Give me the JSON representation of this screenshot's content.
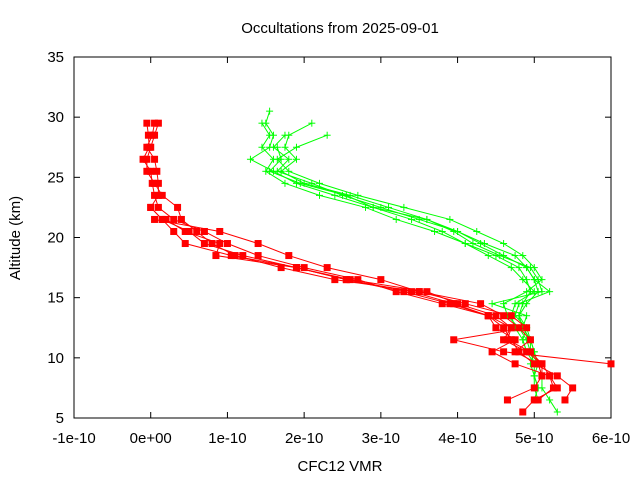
{
  "chart_data": {
    "type": "line",
    "title": "Occultations from 2025-09-01",
    "xlabel": "CFC12 VMR",
    "ylabel": "Altitude (km)",
    "xlim": [
      -1e-10,
      6e-10
    ],
    "ylim": [
      5,
      35
    ],
    "x_ticks": [
      -1e-10,
      0,
      1e-10,
      2e-10,
      3e-10,
      4e-10,
      5e-10,
      6e-10
    ],
    "x_tick_labels": [
      "-1e-10",
      "0e+00",
      "1e-10",
      "2e-10",
      "3e-10",
      "4e-10",
      "5e-10",
      "6e-10"
    ],
    "y_ticks": [
      5,
      10,
      15,
      20,
      25,
      30,
      35
    ],
    "y_tick_labels": [
      "5",
      "10",
      "15",
      "20",
      "25",
      "30",
      "35"
    ],
    "grid": false,
    "legend": "none",
    "colors": {
      "red_series": "#ff0000",
      "green_series": "#00ff00"
    },
    "series_red": [
      {
        "y": [
          29.5,
          28.5,
          27.5,
          26.5,
          25.5,
          24.5,
          23.5,
          22.5,
          21.5,
          20.5,
          19.5,
          18.5,
          17.5,
          16.5,
          15.5,
          14.5,
          13.5,
          12.5,
          11.5,
          10.5,
          9.5,
          8.5,
          7.5,
          6.5
        ],
        "x": [
          -5e-12,
          -3e-12,
          -2e-12,
          -1e-11,
          0.0,
          2e-12,
          5e-12,
          1e-11,
          3e-11,
          7e-11,
          1e-10,
          1.4e-10,
          2e-10,
          2.7e-10,
          3.2e-10,
          3.8e-10,
          4.4e-10,
          4.6e-10,
          4.7e-10,
          4.8e-10,
          5e-10,
          5.3e-10,
          5.5e-10,
          5.4e-10
        ]
      },
      {
        "y": [
          29.5,
          28.5,
          27.5,
          26.5,
          25.5,
          24.5,
          23.5,
          22.5,
          21.5,
          20.5,
          19.5,
          18.5,
          17.5,
          16.5,
          15.5,
          14.5,
          13.5,
          12.5,
          11.5,
          10.5,
          9.5,
          8.5,
          7.5,
          6.5
        ],
        "x": [
          5e-12,
          2e-12,
          -5e-12,
          5e-12,
          8e-12,
          1e-11,
          1e-11,
          0.0,
          1.5e-11,
          5e-11,
          7e-11,
          1.2e-10,
          1.9e-10,
          2.6e-10,
          3.6e-10,
          4e-10,
          4.5e-10,
          4.7e-10,
          4.6e-10,
          4.9e-10,
          5.1e-10,
          5.2e-10,
          5.25e-10,
          5.05e-10
        ]
      },
      {
        "y": [
          29.5,
          28.5,
          27.5,
          26.5,
          25.5,
          24.5,
          23.5,
          22.5,
          21.5,
          20.5,
          19.5,
          18.5,
          17.5,
          16.5,
          15.5,
          14.5,
          13.5,
          12.5,
          11.5,
          10.5,
          9.5,
          8.5,
          7.5,
          6.5
        ],
        "x": [
          1e-11,
          5e-12,
          0.0,
          -5e-12,
          -5e-12,
          5e-12,
          1.5e-11,
          3.5e-11,
          4e-11,
          6e-11,
          8e-11,
          1.1e-10,
          1.7e-10,
          2.4e-10,
          3.5e-10,
          4.3e-10,
          4.6e-10,
          4.8e-10,
          4.95e-10,
          4.75e-10,
          5.05e-10,
          5.1e-10,
          5e-10,
          4.65e-10
        ]
      },
      {
        "y": [
          21.5,
          20.5,
          19.5,
          18.5,
          17.5,
          16.5,
          15.5,
          14.5,
          13.5,
          12.5,
          11.5,
          10.5,
          9.5
        ],
        "x": [
          5e-12,
          9e-11,
          1.4e-10,
          1.8e-10,
          2.3e-10,
          3e-10,
          3.5e-10,
          4.1e-10,
          4.7e-10,
          4.9e-10,
          3.95e-10,
          4.6e-10,
          6e-10
        ]
      },
      {
        "y": [
          22.5,
          21.5,
          20.5,
          19.5,
          18.5,
          17.5,
          16.5,
          15.5,
          14.5,
          13.5,
          12.5,
          11.5,
          10.5,
          9.5,
          8.5,
          7.5,
          6.5,
          5.5
        ],
        "x": [
          0.0,
          1.5e-11,
          3e-11,
          4.5e-11,
          1.05e-10,
          1.9e-10,
          2.55e-10,
          3.3e-10,
          3.9e-10,
          4.4e-10,
          4.5e-10,
          4.75e-10,
          4.45e-10,
          4.75e-10,
          5.2e-10,
          5.3e-10,
          5e-10,
          4.85e-10
        ]
      },
      {
        "y": [
          21.5,
          20.5,
          19.5,
          18.5,
          17.5,
          16.5,
          15.5,
          14.5,
          13.5,
          12.5,
          11.5,
          10.5,
          9.5,
          8.5
        ],
        "x": [
          2e-11,
          4.5e-11,
          9e-11,
          8.5e-11,
          1.9e-10,
          2.55e-10,
          3.4e-10,
          3.95e-10,
          4.4e-10,
          4.7e-10,
          4.65e-10,
          4.95e-10,
          5.1e-10,
          5.1e-10
        ]
      }
    ],
    "series_green": [
      {
        "y": [
          30.5,
          29.5,
          28.5,
          27.5,
          26.5,
          25.5,
          24.5,
          23.5,
          22.5,
          21.5,
          20.5,
          19.5,
          18.5,
          17.5,
          16.5,
          15.5,
          14.5,
          13.5,
          12.5,
          11.5,
          10.5,
          9.5,
          8.5,
          7.5,
          6.5,
          5.5
        ],
        "x": [
          1.55e-10,
          1.5e-10,
          1.6e-10,
          1.55e-10,
          1.3e-10,
          1.6e-10,
          1.9e-10,
          2.4e-10,
          2.9e-10,
          3.4e-10,
          3.8e-10,
          4.1e-10,
          4.5e-10,
          4.8e-10,
          4.9e-10,
          4.95e-10,
          4.85e-10,
          4.8e-10,
          4.9e-10,
          4.95e-10,
          5e-10,
          5.05e-10,
          5.1e-10,
          5.1e-10,
          5.2e-10,
          5.3e-10
        ]
      },
      {
        "y": [
          29.5,
          28.5,
          27.5,
          26.5,
          25.5,
          24.5,
          23.5,
          22.5,
          21.5,
          20.5,
          19.5,
          18.5,
          17.5,
          16.5,
          15.5,
          14.5,
          13.5,
          12.5,
          11.5,
          10.5,
          9.5,
          8.5,
          7.5,
          6.5
        ],
        "x": [
          2.1e-10,
          1.8e-10,
          1.75e-10,
          1.9e-10,
          1.7e-10,
          2e-10,
          2.6e-10,
          3.1e-10,
          3.6e-10,
          4e-10,
          4.3e-10,
          4.6e-10,
          4.9e-10,
          5e-10,
          5.05e-10,
          4.9e-10,
          4.8e-10,
          4.85e-10,
          4.95e-10,
          5e-10,
          4.95e-10,
          5e-10,
          5.05e-10,
          5e-10
        ]
      },
      {
        "y": [
          29.5,
          28.5,
          27.5,
          26.5,
          25.5,
          24.5,
          23.5,
          22.5,
          21.5,
          20.5,
          19.5,
          18.5,
          17.5,
          16.5,
          15.5,
          14.5,
          13.5,
          12.5,
          11.5,
          10.5,
          9.5,
          8.5,
          7.5
        ],
        "x": [
          1.45e-10,
          1.55e-10,
          1.45e-10,
          1.6e-10,
          1.5e-10,
          1.75e-10,
          2.2e-10,
          2.8e-10,
          3.2e-10,
          3.7e-10,
          4.1e-10,
          4.4e-10,
          4.7e-10,
          4.85e-10,
          5e-10,
          4.75e-10,
          4.7e-10,
          4.75e-10,
          4.85e-10,
          4.9e-10,
          5e-10,
          5e-10,
          5.05e-10
        ]
      },
      {
        "y": [
          28.5,
          27.5,
          26.5,
          25.5,
          24.5,
          23.5,
          22.5,
          21.5,
          20.5,
          19.5,
          18.5,
          17.5,
          16.5,
          15.5,
          14.5,
          13.5,
          12.5,
          11.5,
          10.5,
          9.5,
          8.5,
          7.5,
          6.5
        ],
        "x": [
          2.3e-10,
          1.9e-10,
          1.65e-10,
          1.8e-10,
          2.2e-10,
          2.7e-10,
          3.3e-10,
          3.9e-10,
          4.25e-10,
          4.6e-10,
          4.85e-10,
          5e-10,
          5.1e-10,
          4.9e-10,
          4.6e-10,
          4.65e-10,
          4.8e-10,
          4.9e-10,
          4.95e-10,
          5.05e-10,
          5e-10,
          5e-10,
          5.05e-10
        ]
      },
      {
        "y": [
          28.5,
          27.5,
          26.5,
          25.5,
          24.5,
          23.5,
          22.5,
          21.5,
          20.5,
          19.5,
          18.5,
          17.5,
          16.5,
          15.5,
          14.5,
          13.5,
          12.5,
          11.5,
          10.5
        ],
        "x": [
          1.75e-10,
          1.6e-10,
          1.8e-10,
          1.65e-10,
          2.1e-10,
          2.5e-10,
          3e-10,
          3.5e-10,
          4e-10,
          4.35e-10,
          4.75e-10,
          4.9e-10,
          5e-10,
          5.2e-10,
          4.8e-10,
          4.75e-10,
          4.9e-10,
          4.85e-10,
          4.9e-10
        ]
      },
      {
        "y": [
          27.5,
          26.5,
          25.5,
          24.5,
          23.5,
          22.5,
          21.5,
          20.5,
          19.5,
          18.5,
          17.5,
          16.5,
          15.5,
          14.5,
          13.5,
          12.5,
          11.5,
          10.5,
          9.5
        ],
        "x": [
          1.65e-10,
          1.7e-10,
          1.55e-10,
          1.95e-10,
          2.55e-10,
          2.9e-10,
          3.6e-10,
          3.95e-10,
          4.2e-10,
          4.55e-10,
          4.95e-10,
          5.05e-10,
          5.1e-10,
          4.45e-10,
          4.9e-10,
          4.85e-10,
          4.95e-10,
          4.95e-10,
          5e-10
        ]
      }
    ]
  }
}
